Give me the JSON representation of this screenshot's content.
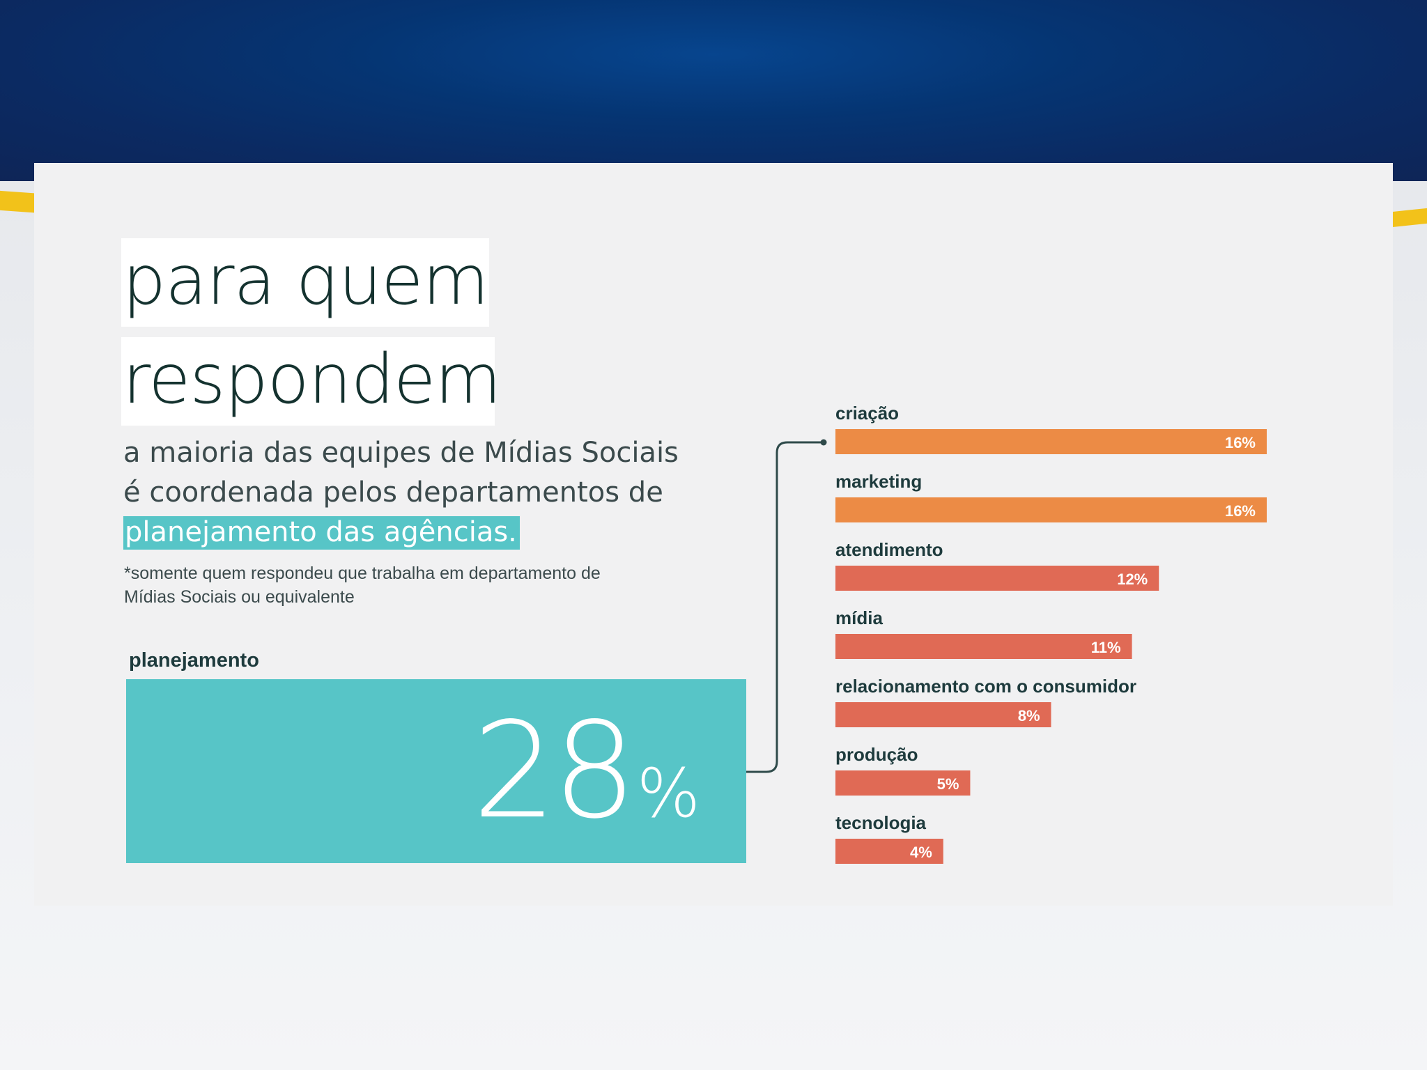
{
  "heading": {
    "line1": "para quem",
    "line2": "respondem"
  },
  "subtitle": {
    "line1": "a maioria das equipes de Mídias Sociais",
    "line2": "é coordenada pelos departamentos de",
    "highlight": "planejamento das agências."
  },
  "footnote": {
    "line1": "*somente quem respondeu que trabalha em departamento de",
    "line2": "Mídias Sociais ou equivalente"
  },
  "colors": {
    "teal": "#57c5c7",
    "orange": "#ec8b45",
    "coral": "#e06a55"
  },
  "chart_data": [
    {
      "type": "bar",
      "categories": [
        "planejamento"
      ],
      "values": [
        28
      ],
      "value_labels": [
        "28",
        "%"
      ]
    },
    {
      "type": "bar",
      "orientation": "horizontal",
      "categories": [
        "criação",
        "marketing",
        "atendimento",
        "mídia",
        "relacionamento com o consumidor",
        "produção",
        "tecnologia"
      ],
      "values": [
        16,
        16,
        12,
        11,
        8,
        5,
        4
      ],
      "value_labels": [
        "16%",
        "16%",
        "12%",
        "11%",
        "8%",
        "5%",
        "4%"
      ],
      "bar_colors": [
        "#ec8b45",
        "#ec8b45",
        "#e06a55",
        "#e06a55",
        "#e06a55",
        "#e06a55",
        "#e06a55"
      ]
    }
  ]
}
